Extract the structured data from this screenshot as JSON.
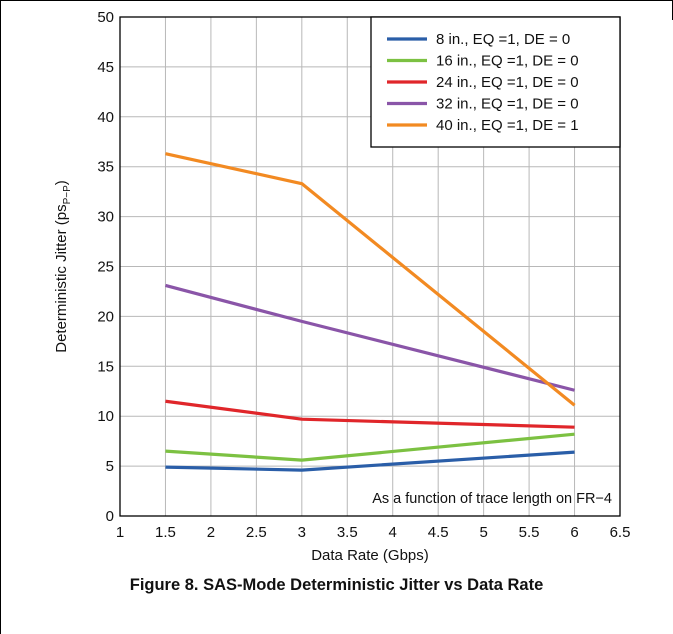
{
  "chart_data": {
    "type": "line",
    "xlabel": "Data Rate (Gbps)",
    "ylabel_main": "Deterministic Jitter (ps",
    "ylabel_sub": "P−P",
    "ylabel_close": ")",
    "xlim": [
      1,
      6.5
    ],
    "ylim": [
      0,
      50
    ],
    "xticks": [
      "1",
      "1.5",
      "2",
      "2.5",
      "3",
      "3.5",
      "4",
      "4.5",
      "5",
      "5.5",
      "6",
      "6.5"
    ],
    "yticks": [
      "0",
      "5",
      "10",
      "15",
      "20",
      "25",
      "30",
      "35",
      "40",
      "45",
      "50"
    ],
    "grid": true,
    "legend_position": "top-right",
    "annotation": "As a function of trace length on FR−4",
    "x": [
      1.5,
      3,
      6
    ],
    "series": [
      {
        "name": "8 in., EQ =1, DE = 0",
        "color": "#2a5ea8",
        "values": [
          4.9,
          4.6,
          6.4
        ]
      },
      {
        "name": "16 in., EQ =1, DE = 0",
        "color": "#7cc142",
        "values": [
          6.5,
          5.6,
          8.2
        ]
      },
      {
        "name": "24 in., EQ =1, DE = 0",
        "color": "#e0262a",
        "values": [
          11.5,
          9.7,
          8.9
        ]
      },
      {
        "name": "32 in., EQ =1, DE = 0",
        "color": "#8a55a8",
        "values": [
          23.1,
          19.5,
          12.6
        ]
      },
      {
        "name": "40 in., EQ =1, DE = 1",
        "color": "#f28a22",
        "values": [
          36.3,
          33.3,
          11.1
        ]
      }
    ]
  },
  "caption": "Figure 8. SAS-Mode Deterministic Jitter vs Data Rate"
}
